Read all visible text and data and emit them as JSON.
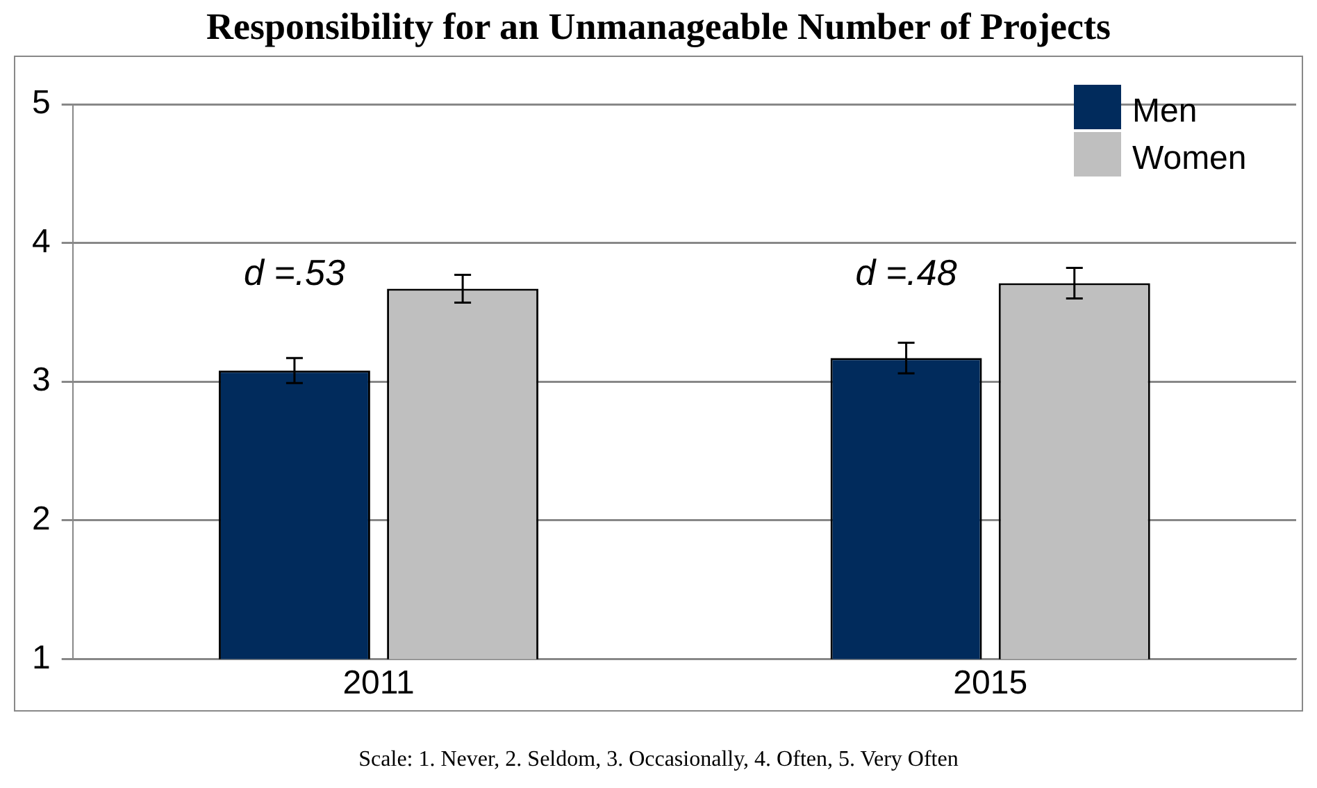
{
  "chart_data": {
    "type": "bar",
    "title": "Responsibility for an Unmanageable Number of Projects",
    "categories": [
      "2011",
      "2015"
    ],
    "series": [
      {
        "name": "Men",
        "color": "#012b5c",
        "values": [
          3.08,
          3.17
        ],
        "errors": [
          0.09,
          0.11
        ]
      },
      {
        "name": "Women",
        "color": "#bfbfbf",
        "values": [
          3.67,
          3.71
        ],
        "errors": [
          0.1,
          0.11
        ]
      }
    ],
    "ylim": [
      1,
      5
    ],
    "yticks": [
      1,
      2,
      3,
      4,
      5
    ],
    "grid": "y",
    "legend": "top right",
    "annotations": [
      "d =.53",
      "d =.48",
      "Scale: 1. Never, 2. Seldom, 3. Occasionally, 4. Often, 5. Very Often"
    ]
  }
}
